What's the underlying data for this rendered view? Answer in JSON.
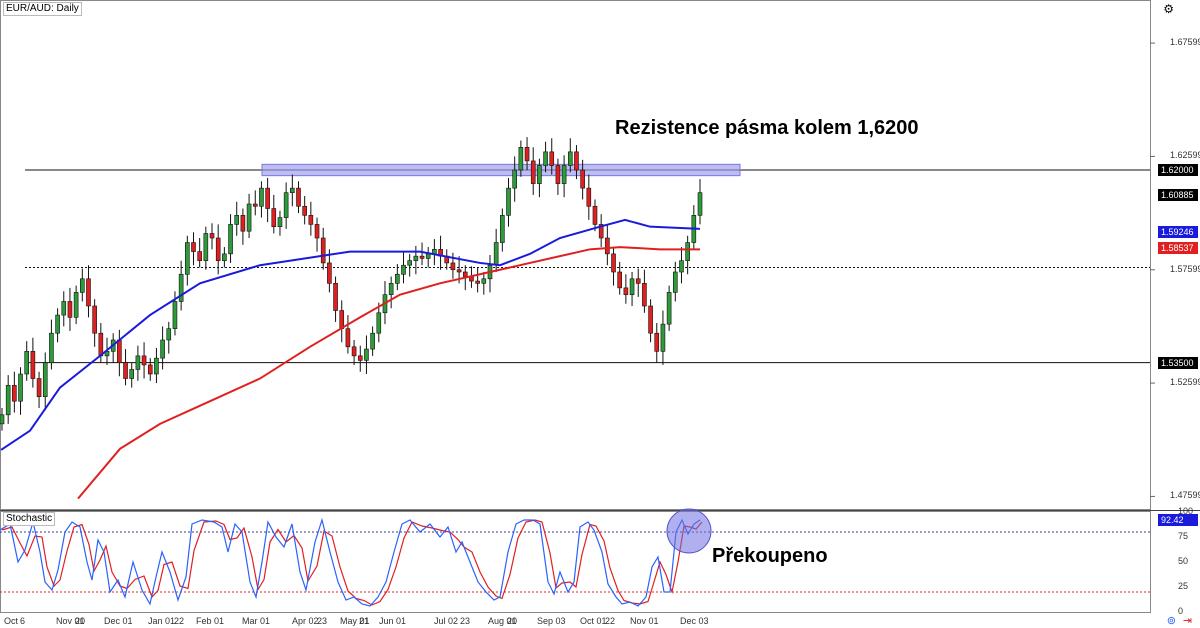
{
  "chart_data": {
    "type": "candlestick",
    "symbol": "EUR/AUD: Daily",
    "price_axis": {
      "ylim": [
        1.47,
        1.695
      ],
      "ticks": [
        "1.67599",
        "1.62599",
        "1.57599",
        "1.52599",
        "1.47599"
      ],
      "tick_values": [
        1.67599,
        1.62599,
        1.57599,
        1.52599,
        1.47599
      ]
    },
    "x_tick_labels": [
      "Oct",
      "6",
      "Nov 01",
      "20",
      "Dec 01",
      "Jan 01",
      "22",
      "Feb 01",
      "Mar 01",
      "Apr 02",
      "23",
      "May 01",
      "21",
      "Jun 01",
      "Jul 02",
      "23",
      "Aug 01",
      "20",
      "Sep 03",
      "Oct 01",
      "22",
      "Nov 01",
      "Dec 03"
    ],
    "price_labels": [
      {
        "value": 1.62,
        "text": "1.62000",
        "bg": "#000000",
        "fg": "#ffffff"
      },
      {
        "value": 1.60885,
        "text": "1.60885",
        "bg": "#000000",
        "fg": "#ffffff"
      },
      {
        "value": 1.59246,
        "text": "1.59246",
        "bg": "#1a1adc",
        "fg": "#ffffff"
      },
      {
        "value": 1.58537,
        "text": "1.58537",
        "bg": "#e02020",
        "fg": "#ffffff"
      },
      {
        "value": 1.535,
        "text": "1.53500",
        "bg": "#000000",
        "fg": "#ffffff"
      }
    ],
    "horizontal_lines": [
      {
        "value": 1.62,
        "style": "solid"
      },
      {
        "value": 1.535,
        "style": "solid"
      },
      {
        "value": 1.577,
        "style": "dotted"
      }
    ],
    "resistance_zone": {
      "low": 1.6175,
      "high": 1.6225,
      "from_bar": 65,
      "to_bar": 185,
      "color": "#9999ee"
    },
    "close_series": [
      1.512,
      1.525,
      1.518,
      1.53,
      1.54,
      1.528,
      1.52,
      1.535,
      1.548,
      1.556,
      1.562,
      1.555,
      1.566,
      1.572,
      1.56,
      1.548,
      1.538,
      1.54,
      1.545,
      1.535,
      1.528,
      1.532,
      1.538,
      1.534,
      1.53,
      1.537,
      1.545,
      1.55,
      1.562,
      1.574,
      1.588,
      1.584,
      1.58,
      1.592,
      1.59,
      1.58,
      1.583,
      1.596,
      1.6,
      1.593,
      1.605,
      1.604,
      1.612,
      1.603,
      1.595,
      1.599,
      1.61,
      1.612,
      1.604,
      1.6,
      1.596,
      1.59,
      1.579,
      1.57,
      1.558,
      1.55,
      1.542,
      1.538,
      1.536,
      1.541,
      1.548,
      1.557,
      1.565,
      1.57,
      1.574,
      1.578,
      1.58,
      1.582,
      1.581,
      1.583,
      1.585,
      1.582,
      1.579,
      1.576,
      1.575,
      1.573,
      1.571,
      1.57,
      1.572,
      1.578,
      1.588,
      1.6,
      1.612,
      1.62,
      1.63,
      1.624,
      1.614,
      1.622,
      1.628,
      1.622,
      1.614,
      1.622,
      1.628,
      1.62,
      1.612,
      1.604,
      1.596,
      1.59,
      1.583,
      1.575,
      1.568,
      1.565,
      1.572,
      1.57,
      1.56,
      1.548,
      1.54,
      1.552,
      1.566,
      1.575,
      1.58,
      1.588,
      1.6,
      1.61
    ],
    "sma_blue": {
      "color": "#1a1adc",
      "start": [
        1,
        1.4965
      ],
      "points": [
        [
          1,
          1.4965
        ],
        [
          30,
          1.505
        ],
        [
          60,
          1.524
        ],
        [
          100,
          1.538
        ],
        [
          150,
          1.556
        ],
        [
          200,
          1.57
        ],
        [
          260,
          1.578
        ],
        [
          350,
          1.584
        ],
        [
          420,
          1.584
        ],
        [
          480,
          1.579
        ],
        [
          500,
          1.578
        ],
        [
          530,
          1.583
        ],
        [
          560,
          1.59
        ],
        [
          600,
          1.595
        ],
        [
          625,
          1.598
        ],
        [
          650,
          1.595
        ],
        [
          700,
          1.594
        ]
      ]
    },
    "sma_red": {
      "color": "#e02020",
      "points": [
        [
          78,
          1.475
        ],
        [
          120,
          1.497
        ],
        [
          160,
          1.508
        ],
        [
          210,
          1.518
        ],
        [
          260,
          1.528
        ],
        [
          310,
          1.542
        ],
        [
          360,
          1.555
        ],
        [
          400,
          1.565
        ],
        [
          440,
          1.57
        ],
        [
          480,
          1.574
        ],
        [
          520,
          1.578
        ],
        [
          560,
          1.582
        ],
        [
          590,
          1.585
        ],
        [
          620,
          1.586
        ],
        [
          660,
          1.585
        ],
        [
          700,
          1.585
        ]
      ]
    },
    "stochastic": {
      "title": "Stochastic",
      "ylim": [
        0,
        100
      ],
      "ticks": [
        "100",
        "75",
        "50",
        "25",
        "0"
      ],
      "tick_values": [
        100,
        75,
        50,
        25,
        0
      ],
      "overbought": 80,
      "oversold": 20,
      "current_label": "92.42",
      "k_points": [
        [
          0,
          82
        ],
        [
          10,
          88
        ],
        [
          18,
          50
        ],
        [
          25,
          62
        ],
        [
          33,
          90
        ],
        [
          40,
          60
        ],
        [
          45,
          30
        ],
        [
          52,
          22
        ],
        [
          58,
          42
        ],
        [
          65,
          80
        ],
        [
          72,
          90
        ],
        [
          80,
          85
        ],
        [
          87,
          50
        ],
        [
          92,
          32
        ],
        [
          98,
          72
        ],
        [
          104,
          60
        ],
        [
          110,
          20
        ],
        [
          118,
          32
        ],
        [
          125,
          15
        ],
        [
          133,
          50
        ],
        [
          142,
          22
        ],
        [
          150,
          8
        ],
        [
          156,
          35
        ],
        [
          162,
          60
        ],
        [
          170,
          40
        ],
        [
          178,
          12
        ],
        [
          186,
          35
        ],
        [
          192,
          88
        ],
        [
          202,
          92
        ],
        [
          214,
          90
        ],
        [
          222,
          85
        ],
        [
          228,
          60
        ],
        [
          235,
          88
        ],
        [
          242,
          80
        ],
        [
          250,
          30
        ],
        [
          256,
          15
        ],
        [
          262,
          50
        ],
        [
          268,
          90
        ],
        [
          276,
          75
        ],
        [
          284,
          65
        ],
        [
          292,
          88
        ],
        [
          300,
          40
        ],
        [
          306,
          22
        ],
        [
          315,
          70
        ],
        [
          322,
          92
        ],
        [
          330,
          60
        ],
        [
          338,
          30
        ],
        [
          346,
          12
        ],
        [
          354,
          15
        ],
        [
          362,
          8
        ],
        [
          370,
          6
        ],
        [
          378,
          15
        ],
        [
          386,
          30
        ],
        [
          394,
          60
        ],
        [
          402,
          88
        ],
        [
          410,
          92
        ],
        [
          420,
          80
        ],
        [
          430,
          88
        ],
        [
          440,
          75
        ],
        [
          448,
          85
        ],
        [
          456,
          60
        ],
        [
          462,
          70
        ],
        [
          470,
          50
        ],
        [
          478,
          30
        ],
        [
          486,
          20
        ],
        [
          494,
          12
        ],
        [
          500,
          15
        ],
        [
          508,
          60
        ],
        [
          516,
          88
        ],
        [
          524,
          92
        ],
        [
          533,
          92
        ],
        [
          540,
          88
        ],
        [
          548,
          30
        ],
        [
          554,
          18
        ],
        [
          560,
          40
        ],
        [
          568,
          20
        ],
        [
          574,
          30
        ],
        [
          580,
          85
        ],
        [
          588,
          90
        ],
        [
          594,
          82
        ],
        [
          602,
          60
        ],
        [
          608,
          28
        ],
        [
          616,
          15
        ],
        [
          622,
          8
        ],
        [
          630,
          10
        ],
        [
          638,
          6
        ],
        [
          646,
          15
        ],
        [
          652,
          45
        ],
        [
          658,
          55
        ],
        [
          664,
          20
        ],
        [
          670,
          20
        ],
        [
          676,
          80
        ],
        [
          682,
          92
        ],
        [
          688,
          78
        ],
        [
          694,
          88
        ],
        [
          700,
          92
        ]
      ]
    }
  },
  "annotations": {
    "resistance": "Rezistence pásma kolem 1,6200",
    "overbought": "Překoupeno"
  },
  "icons": {
    "top_right": "settings-icon",
    "bottom_right_1": "sync-icon",
    "bottom_right_2": "goto-realtime-icon"
  }
}
